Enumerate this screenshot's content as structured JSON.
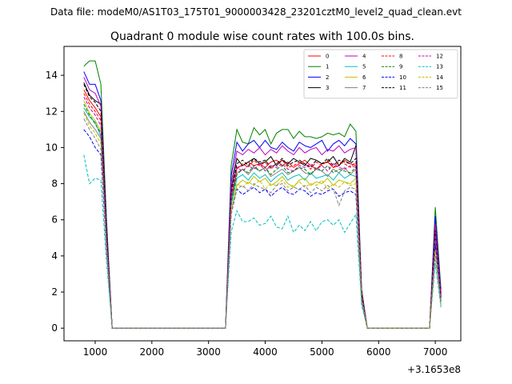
{
  "figure": {
    "suptitle": "Data file: modeM0/AS1T03_175T01_9000003428_23201cztM0_level2_quad_clean.evt",
    "offset_label": "+3.1653e8"
  },
  "chart_data": {
    "type": "line",
    "title": "Quadrant 0 module wise count rates with 100.0s bins.",
    "xlabel": "",
    "ylabel": "",
    "xlim": [
      450,
      7450
    ],
    "ylim": [
      -0.7,
      15.6
    ],
    "xticks": [
      1000,
      2000,
      3000,
      4000,
      5000,
      6000,
      7000
    ],
    "xtick_labels": [
      "1000",
      "2000",
      "3000",
      "4000",
      "5000",
      "6000",
      "7000"
    ],
    "yticks": [
      0,
      2,
      4,
      6,
      8,
      10,
      12,
      14
    ],
    "ytick_labels": [
      "0",
      "2",
      "4",
      "6",
      "8",
      "10",
      "12",
      "14"
    ],
    "grid": false,
    "legend_position": "top-right",
    "legend_columns": 4,
    "x": [
      800,
      900,
      1000,
      1100,
      1200,
      1300,
      1400,
      1500,
      1600,
      1700,
      1800,
      1900,
      2000,
      2100,
      2200,
      2300,
      2400,
      2500,
      2600,
      2700,
      2800,
      2900,
      3000,
      3100,
      3200,
      3300,
      3400,
      3500,
      3600,
      3700,
      3800,
      3900,
      4000,
      4100,
      4200,
      4300,
      4400,
      4500,
      4600,
      4700,
      4800,
      4900,
      5000,
      5100,
      5200,
      5300,
      5400,
      5500,
      5600,
      5700,
      5800,
      5900,
      6000,
      6100,
      6200,
      6300,
      6400,
      6500,
      6600,
      6700,
      6800,
      6900,
      7000,
      7100
    ],
    "series": [
      {
        "name": "0",
        "color": "#ff0000",
        "dash": "solid",
        "plateau1": [
          13.2,
          12.6,
          12.2,
          11.7
        ],
        "plateau2": [
          8.9,
          9.0,
          9.2,
          9.0,
          9.1,
          8.9,
          9.2,
          9.3,
          9.0,
          9.2,
          8.9,
          9.1,
          9.3,
          9.0,
          8.8,
          9.1,
          9.2,
          8.9,
          9.0,
          9.3,
          9.1,
          9.0
        ],
        "spike": 5.9
      },
      {
        "name": "1",
        "color": "#008000",
        "dash": "solid",
        "plateau1": [
          14.5,
          14.8,
          14.8,
          13.5
        ],
        "plateau2": [
          11.0,
          10.3,
          10.2,
          11.1,
          10.7,
          11.0,
          10.2,
          10.8,
          11.0,
          11.0,
          10.5,
          10.9,
          10.6,
          10.6,
          10.5,
          10.6,
          10.8,
          10.7,
          10.8,
          10.6,
          11.3,
          10.9
        ],
        "spike": 6.7
      },
      {
        "name": "2",
        "color": "#0000ff",
        "dash": "solid",
        "plateau1": [
          14.2,
          13.5,
          13.5,
          12.6
        ],
        "plateau2": [
          10.3,
          9.8,
          10.2,
          10.4,
          10.0,
          10.4,
          10.0,
          9.9,
          10.3,
          10.0,
          9.8,
          10.3,
          10.1,
          10.0,
          10.2,
          10.4,
          9.8,
          10.2,
          10.4,
          10.1,
          10.5,
          10.2
        ],
        "spike": 6.2
      },
      {
        "name": "3",
        "color": "#000000",
        "dash": "solid",
        "plateau1": [
          13.6,
          12.9,
          12.6,
          12.4
        ],
        "plateau2": [
          9.4,
          9.0,
          9.2,
          9.4,
          9.1,
          9.2,
          9.5,
          9.0,
          9.3,
          9.1,
          9.4,
          9.2,
          9.0,
          9.4,
          9.3,
          9.1,
          9.2,
          9.5,
          9.0,
          9.4,
          9.2,
          10.1
        ],
        "spike": 5.6
      },
      {
        "name": "4",
        "color": "#bf00bf",
        "dash": "solid",
        "plateau1": [
          13.9,
          13.2,
          13.0,
          12.3
        ],
        "plateau2": [
          9.8,
          9.6,
          9.9,
          9.7,
          10.0,
          9.6,
          9.9,
          9.7,
          10.1,
          9.8,
          9.6,
          10.0,
          9.7,
          9.9,
          10.0,
          9.6,
          9.9,
          9.8,
          10.1,
          9.7,
          9.9,
          10.0
        ],
        "spike": 5.8
      },
      {
        "name": "5",
        "color": "#00bfbf",
        "dash": "solid",
        "plateau1": [
          12.2,
          11.7,
          11.4,
          10.6
        ],
        "plateau2": [
          8.3,
          8.5,
          8.2,
          8.6,
          8.3,
          8.5,
          8.1,
          8.4,
          8.6,
          8.2,
          8.4,
          8.5,
          8.2,
          8.6,
          8.3,
          8.4,
          8.5,
          8.2,
          8.6,
          8.3,
          8.5,
          8.4
        ],
        "spike": 4.8
      },
      {
        "name": "6",
        "color": "#bfbf00",
        "dash": "solid",
        "plateau1": [
          12.6,
          11.9,
          11.5,
          10.9
        ],
        "plateau2": [
          7.9,
          8.2,
          8.0,
          8.4,
          8.1,
          8.3,
          7.9,
          8.1,
          8.4,
          8.0,
          7.8,
          8.2,
          8.3,
          7.9,
          8.1,
          8.0,
          8.3,
          7.9,
          8.2,
          8.1,
          8.0,
          8.3
        ],
        "spike": 4.5
      },
      {
        "name": "7",
        "color": "#808080",
        "dash": "solid",
        "plateau1": [
          12.0,
          11.4,
          11.0,
          10.5
        ],
        "plateau2": [
          8.6,
          8.8,
          8.5,
          8.9,
          8.7,
          8.9,
          8.4,
          8.6,
          8.8,
          8.5,
          8.7,
          8.9,
          8.6,
          8.5,
          8.8,
          8.7,
          8.4,
          8.8,
          8.6,
          8.9,
          8.5,
          8.8
        ],
        "spike": 4.9
      },
      {
        "name": "8",
        "color": "#ff0000",
        "dash": "dashed",
        "plateau1": [
          13.0,
          12.4,
          12.0,
          11.5
        ],
        "plateau2": [
          8.8,
          9.1,
          8.9,
          9.3,
          9.0,
          9.2,
          8.8,
          9.1,
          9.3,
          8.9,
          9.0,
          9.2,
          9.1,
          8.8,
          9.2,
          9.0,
          9.3,
          8.9,
          9.2,
          9.1,
          8.9,
          9.2
        ],
        "spike": 5.5
      },
      {
        "name": "9",
        "color": "#008000",
        "dash": "dashed",
        "plateau1": [
          12.4,
          11.8,
          11.3,
          10.8
        ],
        "plateau2": [
          8.5,
          8.8,
          8.6,
          9.0,
          8.7,
          8.9,
          8.5,
          8.8,
          9.0,
          8.6,
          8.7,
          8.9,
          8.8,
          8.5,
          8.9,
          8.7,
          9.0,
          8.6,
          8.8,
          8.7,
          8.6,
          8.9
        ],
        "spike": 5.2
      },
      {
        "name": "10",
        "color": "#0000ff",
        "dash": "dashed",
        "plateau1": [
          11.0,
          10.6,
          10.0,
          9.6
        ],
        "plateau2": [
          7.7,
          7.4,
          7.6,
          7.8,
          7.5,
          7.7,
          7.3,
          7.6,
          7.8,
          7.5,
          7.4,
          7.7,
          7.6,
          7.3,
          7.5,
          7.4,
          7.6,
          7.7,
          7.3,
          7.5,
          7.6,
          7.4
        ],
        "spike": 4.6
      },
      {
        "name": "11",
        "color": "#000000",
        "dash": "dashed",
        "plateau1": [
          13.5,
          12.8,
          12.5,
          12.0
        ],
        "plateau2": [
          9.1,
          9.3,
          9.0,
          9.4,
          9.2,
          9.3,
          8.9,
          9.1,
          9.4,
          9.0,
          9.2,
          9.3,
          9.1,
          8.9,
          9.3,
          9.1,
          9.4,
          9.0,
          9.3,
          9.2,
          9.1,
          9.4
        ],
        "spike": 5.4
      },
      {
        "name": "12",
        "color": "#bf00bf",
        "dash": "dashed",
        "plateau1": [
          12.8,
          12.2,
          11.8,
          11.2
        ],
        "plateau2": [
          8.9,
          8.7,
          9.0,
          8.8,
          9.1,
          8.7,
          9.0,
          8.9,
          9.1,
          8.8,
          8.7,
          9.0,
          8.9,
          9.1,
          8.8,
          9.0,
          8.7,
          9.1,
          8.9,
          8.8,
          9.0,
          8.9
        ],
        "spike": 5.3
      },
      {
        "name": "13",
        "color": "#00bfbf",
        "dash": "dashed",
        "plateau1": [
          9.6,
          8.0,
          8.3,
          8.2
        ],
        "plateau2": [
          6.5,
          5.9,
          5.9,
          6.1,
          5.7,
          5.8,
          6.2,
          5.6,
          5.5,
          6.2,
          5.3,
          5.7,
          5.4,
          5.9,
          5.4,
          5.9,
          6.0,
          5.7,
          6.0,
          5.3,
          5.8,
          6.3
        ],
        "spike": 3.6
      },
      {
        "name": "14",
        "color": "#bfbf00",
        "dash": "dashed",
        "plateau1": [
          11.9,
          11.2,
          10.8,
          10.2
        ],
        "plateau2": [
          8.0,
          7.8,
          8.1,
          7.9,
          8.2,
          7.7,
          8.0,
          7.9,
          8.2,
          7.8,
          7.9,
          8.1,
          7.8,
          8.0,
          7.9,
          8.2,
          7.7,
          8.0,
          7.8,
          8.1,
          7.9,
          8.0
        ],
        "spike": 4.3
      },
      {
        "name": "15",
        "color": "#808080",
        "dash": "dashed",
        "plateau1": [
          11.6,
          11.0,
          10.5,
          9.9
        ],
        "plateau2": [
          7.7,
          7.9,
          7.6,
          8.0,
          7.8,
          7.7,
          7.5,
          7.9,
          8.0,
          7.6,
          7.8,
          7.7,
          7.9,
          7.5,
          7.8,
          7.6,
          7.9,
          7.7,
          6.8,
          7.6,
          7.8,
          7.7
        ],
        "spike": 4.0
      }
    ]
  }
}
